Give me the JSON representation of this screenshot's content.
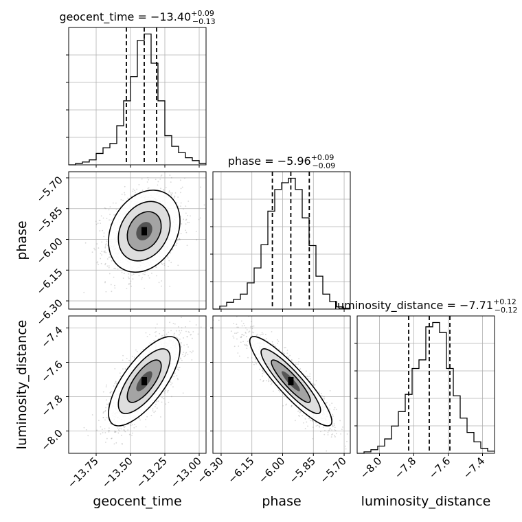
{
  "chart_data": {
    "type": "corner",
    "parameters": [
      "geocent_time",
      "phase",
      "luminosity_distance"
    ],
    "titles": [
      {
        "param": "geocent_time",
        "prefix": "geocent_time = ",
        "value": "−13.40",
        "plus": "+0.09",
        "minus": "−0.13"
      },
      {
        "param": "phase",
        "prefix": "phase = ",
        "value": "−5.96",
        "plus": "+0.09",
        "minus": "−0.09"
      },
      {
        "param": "luminosity_distance",
        "prefix": "luminosity_distance = ",
        "value": "−7.71",
        "plus": "+0.12",
        "minus": "−0.12"
      }
    ],
    "axes": {
      "geocent_time": {
        "range": [
          -13.95,
          -12.95
        ],
        "ticks": [
          -13.75,
          -13.5,
          -13.25,
          -13.0
        ],
        "tick_labels": [
          "−13.75",
          "−13.50",
          "−13.25",
          "−13.00"
        ],
        "xlabel": "geocent_time"
      },
      "phase": {
        "range": [
          -6.34,
          -5.67
        ],
        "ticks": [
          -6.3,
          -6.15,
          -6.0,
          -5.85,
          -5.7
        ],
        "tick_labels": [
          "−6.30",
          "−6.15",
          "−6.00",
          "−5.85",
          "−5.70"
        ],
        "xlabel": "phase",
        "ylabel": "phase"
      },
      "luminosity_distance": {
        "range": [
          -8.13,
          -7.33
        ],
        "ticks": [
          -8.0,
          -7.8,
          -7.6,
          -7.4
        ],
        "tick_labels": [
          "−8.0",
          "−7.8",
          "−7.6",
          "−7.4"
        ],
        "xlabel": "luminosity_distance",
        "ylabel": "luminosity_distance"
      }
    },
    "histograms": {
      "geocent_time": {
        "bin_edges": [
          -13.95,
          -13.9,
          -13.85,
          -13.8,
          -13.75,
          -13.7,
          -13.65,
          -13.6,
          -13.55,
          -13.5,
          -13.45,
          -13.4,
          -13.35,
          -13.3,
          -13.25,
          -13.2,
          -13.15,
          -13.1,
          -13.05,
          -13.0,
          -12.95
        ],
        "counts": [
          0,
          2,
          4,
          7,
          16,
          24,
          30,
          55,
          90,
          124,
          175,
          184,
          143,
          90,
          41,
          26,
          17,
          10,
          6,
          2
        ]
      },
      "phase": {
        "bin_edges": [
          -6.34,
          -6.3065,
          -6.273,
          -6.2395,
          -6.206,
          -6.1725,
          -6.139,
          -6.1055,
          -6.072,
          -6.0385,
          -6.005,
          -5.9715,
          -5.938,
          -5.9045,
          -5.871,
          -5.8375,
          -5.804,
          -5.7705,
          -5.737,
          -5.7035,
          -5.67
        ],
        "counts": [
          0,
          4,
          9,
          13,
          20,
          35,
          55,
          86,
          131,
          160,
          169,
          175,
          160,
          122,
          85,
          44,
          20,
          10,
          3,
          1
        ]
      },
      "luminosity_distance": {
        "bin_edges": [
          -8.13,
          -8.09,
          -8.05,
          -8.01,
          -7.97,
          -7.93,
          -7.89,
          -7.85,
          -7.81,
          -7.77,
          -7.73,
          -7.69,
          -7.65,
          -7.61,
          -7.57,
          -7.53,
          -7.49,
          -7.45,
          -7.41,
          -7.37,
          -7.33
        ],
        "counts": [
          0,
          2,
          5,
          10,
          20,
          38,
          58,
          82,
          118,
          130,
          176,
          182,
          168,
          118,
          80,
          49,
          29,
          16,
          7,
          3
        ]
      }
    },
    "quantiles": {
      "geocent_time": [
        -13.53,
        -13.4,
        -13.31
      ],
      "phase": [
        -6.05,
        -5.96,
        -5.87
      ],
      "luminosity_distance": [
        -7.83,
        -7.71,
        -7.59
      ]
    },
    "pairs": [
      {
        "x": "geocent_time",
        "y": "phase",
        "center": [
          -13.4,
          -5.96
        ],
        "spread": [
          0.13,
          0.1
        ],
        "correlation": 0.25
      },
      {
        "x": "geocent_time",
        "y": "luminosity_distance",
        "center": [
          -13.4,
          -7.71
        ],
        "spread": [
          0.13,
          0.13
        ],
        "correlation": 0.72
      },
      {
        "x": "phase",
        "y": "luminosity_distance",
        "center": [
          -5.96,
          -7.71
        ],
        "spread": [
          0.1,
          0.13
        ],
        "correlation": -0.9
      }
    ],
    "grid": true,
    "colors": {
      "line": "#000000",
      "grid": "#b0b0b0",
      "scatter": "#8c8c8c"
    }
  }
}
